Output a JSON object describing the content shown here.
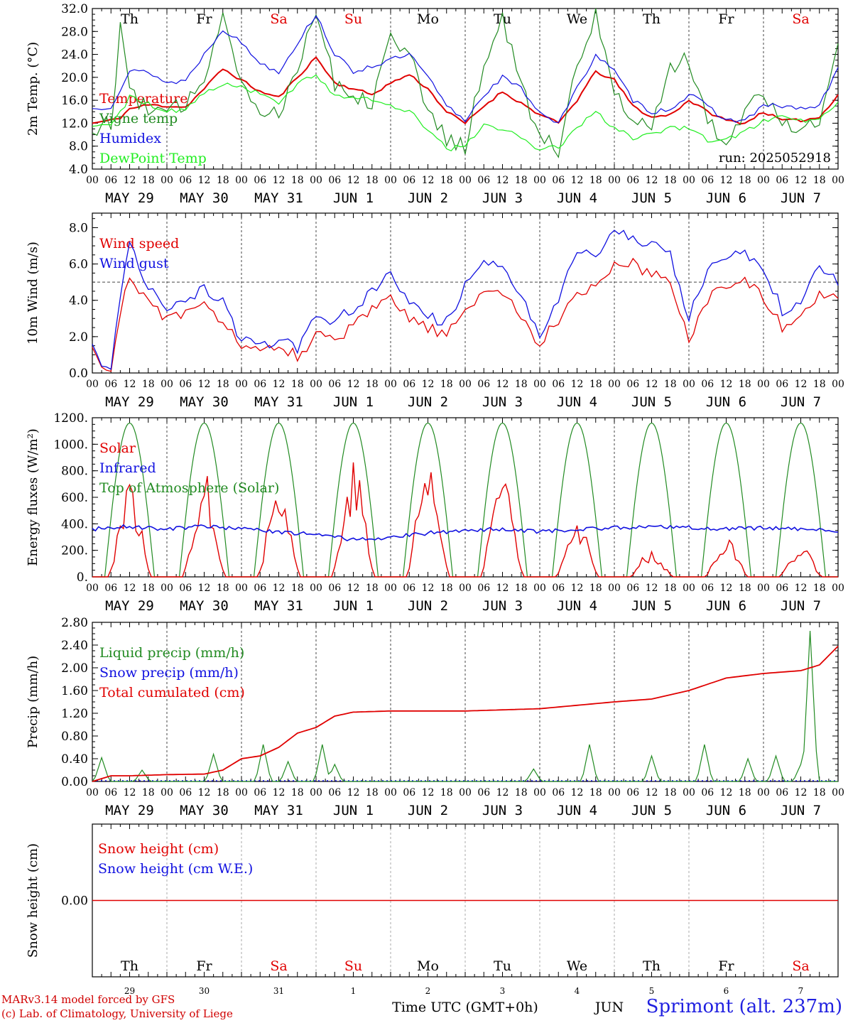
{
  "footer": {
    "credit_line1": "MARv3.14 model forced by GFS",
    "credit_line2": "(c) Lab. of Climatology, University of Liege",
    "station": "Sprimont (alt. 237m)",
    "xlabel": "Time UTC (GMT+0h)",
    "month_label": "JUN"
  },
  "colors": {
    "red": "#e00000",
    "green": "#228b22",
    "blue": "#1010e0",
    "lightgreen": "#22ee22",
    "grid": "#555555"
  },
  "days": {
    "weekday": [
      "Th",
      "Fr",
      "Sa",
      "Su",
      "Mo",
      "Tu",
      "We",
      "Th",
      "Fr",
      "Sa"
    ],
    "weekend_flags": [
      false,
      false,
      true,
      true,
      false,
      false,
      false,
      false,
      false,
      true
    ],
    "dates": [
      "MAY 29",
      "MAY 30",
      "MAY 31",
      "JUN  1",
      "JUN  2",
      "JUN  3",
      "JUN  4",
      "JUN  5",
      "JUN  6",
      "JUN  7"
    ],
    "short_dates": [
      "29",
      "30",
      "31",
      "1",
      "2",
      "3",
      "4",
      "5",
      "6",
      "7"
    ],
    "hour_ticks": [
      "00",
      "06",
      "12",
      "18"
    ],
    "last_hour_tick": "00"
  },
  "run_label": "run: 2025052918",
  "chart_data": [
    {
      "type": "line",
      "ylabel": "2m Temp. (°C)",
      "ylim": [
        4.0,
        32.0
      ],
      "yticks": [
        "4.0",
        "8.0",
        "12.0",
        "16.0",
        "20.0",
        "24.0",
        "28.0",
        "32.0"
      ],
      "x_hours": [
        0,
        6,
        9,
        12,
        18,
        24,
        30,
        36,
        42,
        48,
        54,
        60,
        66,
        72,
        78,
        84,
        90,
        96,
        102,
        108,
        114,
        120,
        126,
        132,
        138,
        144,
        150,
        156,
        162,
        168,
        174,
        180,
        186,
        192,
        198,
        204,
        210,
        216,
        222,
        228,
        234,
        240
      ],
      "series": [
        {
          "name": "Temperature",
          "color": "red",
          "values": [
            12.0,
            12.5,
            13.0,
            14.5,
            15.2,
            15.0,
            14.8,
            18.0,
            21.5,
            19.5,
            17.5,
            16.5,
            20.0,
            23.5,
            19.0,
            18.0,
            17.0,
            19.0,
            20.5,
            18.0,
            14.0,
            12.0,
            15.0,
            17.5,
            15.5,
            13.5,
            12.0,
            16.0,
            21.0,
            19.5,
            15.0,
            13.0,
            13.5,
            16.0,
            14.0,
            12.5,
            12.0,
            14.0,
            12.5,
            12.5,
            13.0,
            17.0
          ]
        },
        {
          "name": "Vigne temp",
          "color": "green",
          "values": [
            11.0,
            12.0,
            29.0,
            18.0,
            14.0,
            14.0,
            15.0,
            20.0,
            32.0,
            19.0,
            14.0,
            14.0,
            22.0,
            32.0,
            19.0,
            17.0,
            16.0,
            28.0,
            24.0,
            14.0,
            9.0,
            8.0,
            22.0,
            30.5,
            18.0,
            10.0,
            7.5,
            22.0,
            31.5,
            18.0,
            12.0,
            12.0,
            22.0,
            23.0,
            12.0,
            9.5,
            14.0,
            18.0,
            12.0,
            11.5,
            13.0,
            25.0
          ]
        },
        {
          "name": "Humidex",
          "color": "blue",
          "values": [
            14.5,
            15.0,
            18.0,
            21.0,
            21.0,
            19.0,
            19.5,
            24.0,
            28.5,
            26.0,
            22.5,
            21.0,
            26.0,
            31.0,
            24.0,
            21.0,
            22.0,
            23.0,
            24.0,
            20.0,
            15.0,
            12.5,
            17.0,
            20.0,
            18.0,
            14.0,
            12.0,
            18.0,
            24.0,
            21.0,
            16.0,
            14.0,
            14.5,
            17.0,
            15.0,
            12.5,
            12.5,
            15.0,
            15.0,
            14.5,
            15.0,
            21.5
          ]
        },
        {
          "name": "DewPoint Temp",
          "color": "lightgreen",
          "values": [
            11.5,
            12.0,
            14.0,
            16.5,
            15.5,
            14.0,
            14.5,
            17.0,
            19.0,
            18.5,
            17.0,
            15.5,
            19.0,
            20.5,
            17.0,
            16.5,
            16.0,
            15.0,
            14.0,
            11.0,
            7.5,
            8.0,
            11.5,
            11.0,
            9.5,
            7.5,
            8.0,
            11.0,
            14.0,
            11.0,
            9.5,
            10.0,
            11.5,
            11.0,
            9.0,
            9.0,
            10.5,
            12.5,
            13.0,
            12.5,
            12.5,
            15.5
          ]
        }
      ]
    },
    {
      "type": "line",
      "ylabel": "10m Wind (m/s)",
      "ylim": [
        0.0,
        8.8
      ],
      "yticks": [
        "0.0",
        "2.0",
        "4.0",
        "6.0",
        "8.0"
      ],
      "ref_line": 5.0,
      "x_hours": [
        0,
        3,
        6,
        9,
        12,
        18,
        24,
        30,
        36,
        42,
        48,
        54,
        60,
        66,
        72,
        78,
        84,
        90,
        96,
        102,
        108,
        114,
        120,
        126,
        132,
        138,
        144,
        150,
        156,
        162,
        168,
        174,
        180,
        186,
        192,
        198,
        204,
        210,
        216,
        222,
        228,
        234,
        240
      ],
      "series": [
        {
          "name": "Wind speed",
          "color": "red",
          "values": [
            1.4,
            0.3,
            0.1,
            3.5,
            5.0,
            4.0,
            3.0,
            3.2,
            3.6,
            3.0,
            1.5,
            1.0,
            1.5,
            1.0,
            2.0,
            1.8,
            2.5,
            3.5,
            4.0,
            3.0,
            2.5,
            2.0,
            3.5,
            4.5,
            4.5,
            3.0,
            1.6,
            3.0,
            4.5,
            4.8,
            5.8,
            6.0,
            5.5,
            5.0,
            2.0,
            4.0,
            5.0,
            5.2,
            4.0,
            2.5,
            3.0,
            4.5,
            4.0
          ]
        },
        {
          "name": "Wind gust",
          "color": "blue",
          "values": [
            1.6,
            0.4,
            0.2,
            4.5,
            7.0,
            4.8,
            3.6,
            4.0,
            4.6,
            3.8,
            1.8,
            1.4,
            2.0,
            1.4,
            3.0,
            2.8,
            3.5,
            4.5,
            5.5,
            4.0,
            3.0,
            2.8,
            4.8,
            6.0,
            6.2,
            4.2,
            2.2,
            4.2,
            6.5,
            6.5,
            7.8,
            7.6,
            7.0,
            6.5,
            3.0,
            5.5,
            6.5,
            6.8,
            5.5,
            3.5,
            4.0,
            6.0,
            5.0
          ]
        }
      ]
    },
    {
      "type": "line",
      "ylabel": "Energy fluxes (W/m²)",
      "ylim": [
        0,
        1200
      ],
      "yticks": [
        "0.",
        "200.",
        "400.",
        "600.",
        "800.",
        "1000.",
        "1200."
      ],
      "series_hours_note": "hourly cycles",
      "series": [
        {
          "name": "Solar",
          "color": "red",
          "peaks": [
            700,
            760,
            700,
            850,
            880,
            850,
            450,
            200,
            300,
            250
          ]
        },
        {
          "name": "Infrared",
          "color": "blue",
          "values": [
            360,
            380,
            360,
            380,
            360,
            340,
            320,
            280,
            300,
            330,
            350,
            360,
            340,
            360,
            370,
            380,
            370,
            360,
            370,
            360,
            350
          ]
        },
        {
          "name": "Top of Atmosphere (Solar)",
          "color": "green",
          "peak": 1160
        }
      ]
    },
    {
      "type": "line",
      "ylabel": "Precip (mm/h)",
      "ylim": [
        0.0,
        2.8
      ],
      "yticks": [
        "0.00",
        "0.40",
        "0.80",
        "1.20",
        "1.60",
        "2.00",
        "2.40",
        "2.80"
      ],
      "x_hours": [
        0,
        6,
        12,
        24,
        36,
        42,
        48,
        54,
        60,
        66,
        72,
        78,
        84,
        90,
        96,
        120,
        144,
        168,
        180,
        192,
        204,
        216,
        228,
        234,
        240
      ],
      "series": [
        {
          "name": "Liquid precip (mm/h)",
          "color": "green",
          "spikes": [
            [
              3,
              0.42
            ],
            [
              16,
              0.2
            ],
            [
              39,
              0.48
            ],
            [
              55,
              0.65
            ],
            [
              63,
              0.35
            ],
            [
              74,
              0.65
            ],
            [
              78,
              0.3
            ],
            [
              142,
              0.22
            ],
            [
              160,
              0.65
            ],
            [
              180,
              0.45
            ],
            [
              197,
              0.65
            ],
            [
              211,
              0.4
            ],
            [
              220,
              0.45
            ],
            [
              228,
              0.3
            ],
            [
              231,
              2.65
            ]
          ]
        },
        {
          "name": "Snow precip (mm/h)",
          "color": "blue",
          "values": [
            0.0,
            0.0
          ]
        },
        {
          "name": "Total cumulated (cm)",
          "color": "red",
          "values": [
            0.0,
            0.1,
            0.1,
            0.12,
            0.13,
            0.2,
            0.4,
            0.45,
            0.6,
            0.85,
            0.95,
            1.15,
            1.22,
            1.23,
            1.24,
            1.24,
            1.28,
            1.4,
            1.45,
            1.6,
            1.82,
            1.9,
            1.95,
            2.05,
            2.38
          ]
        }
      ]
    },
    {
      "type": "line",
      "ylabel": "Snow height (cm)",
      "ylim": [
        -1.0,
        1.0
      ],
      "yticks": [
        "0.00"
      ],
      "series": [
        {
          "name": "Snow height (cm)",
          "color": "red",
          "values": [
            0.0,
            0.0
          ]
        },
        {
          "name": "Snow height (cm W.E.)",
          "color": "blue",
          "values": [
            0.0,
            0.0
          ]
        }
      ]
    }
  ]
}
